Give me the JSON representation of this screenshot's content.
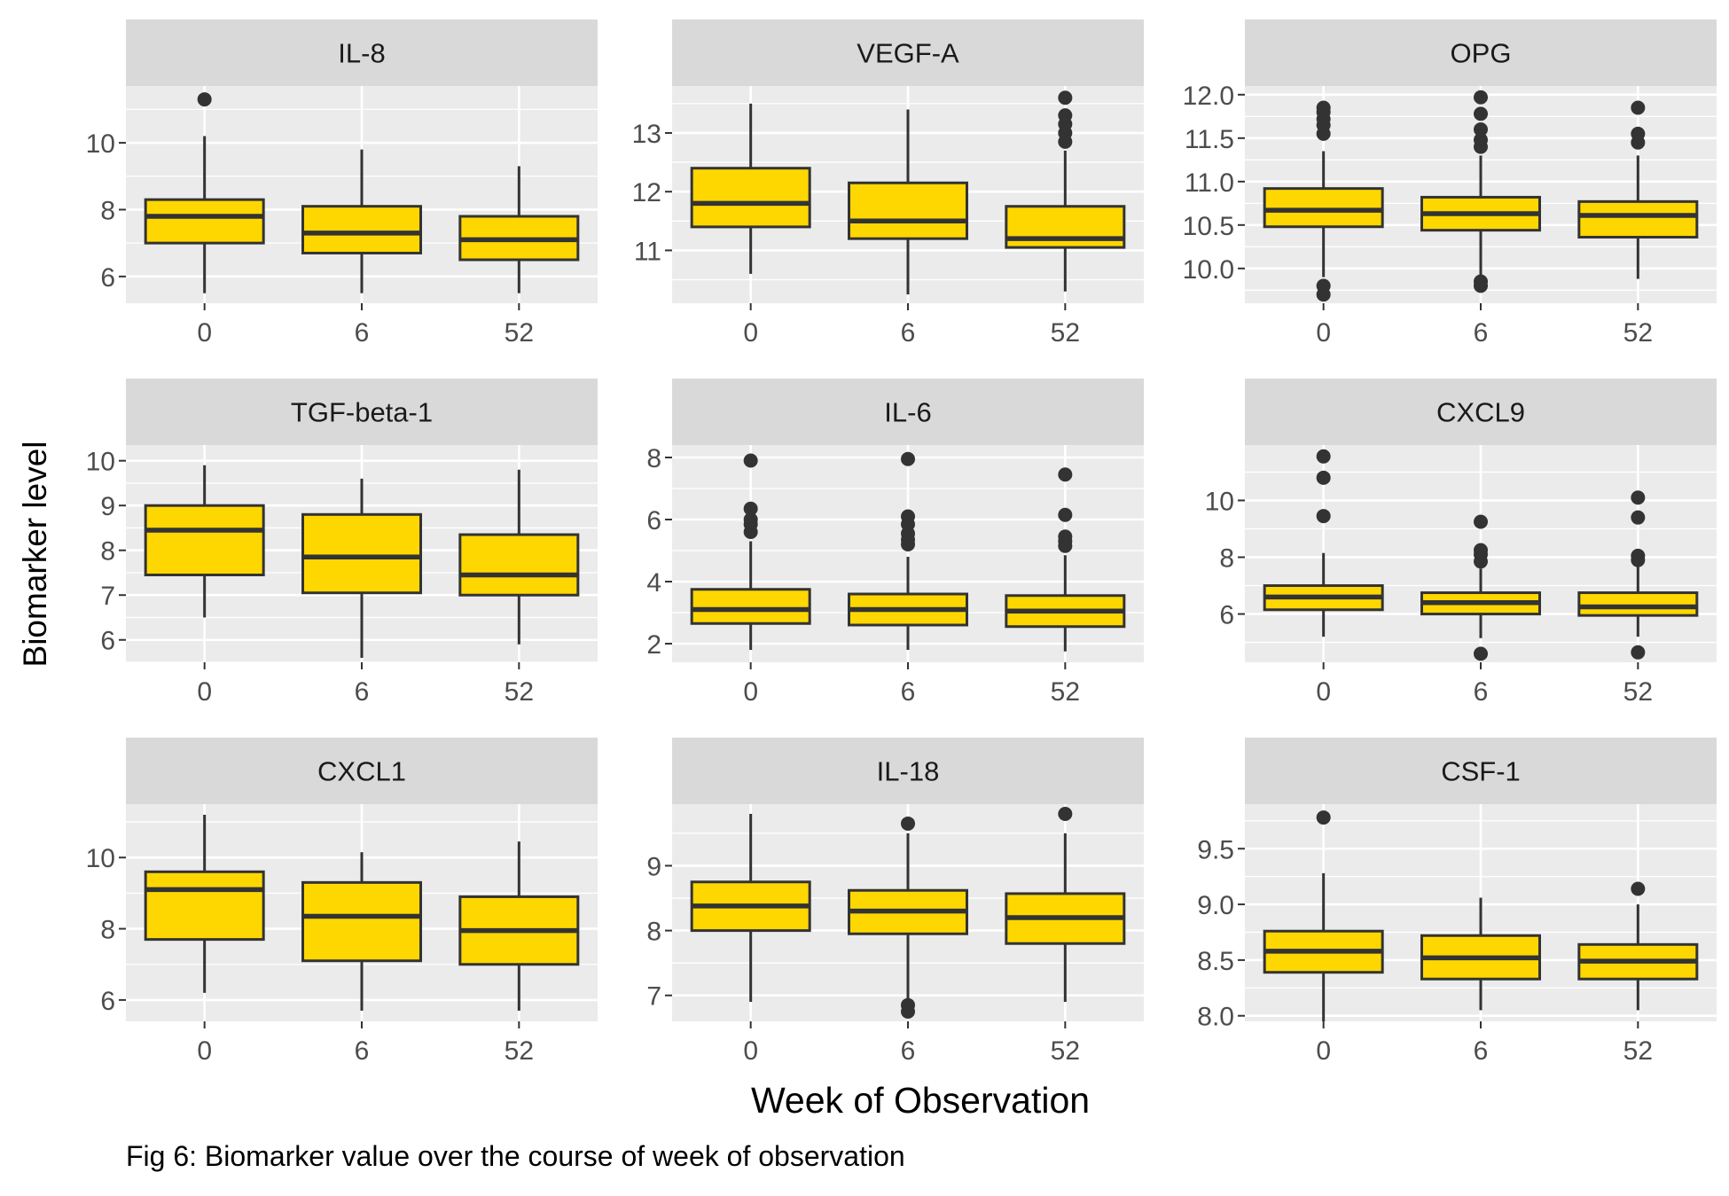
{
  "figure": {
    "y_axis_label": "Biomarker level",
    "x_axis_label": "Week of Observation",
    "caption": "Fig 6: Biomarker value over the course of week of observation"
  },
  "colors": {
    "panel_background": "#EBEBEB",
    "strip_background": "#D9D9D9",
    "gridline": "#FFFFFF",
    "box_fill": "#FFD700",
    "box_line": "#333333",
    "outlier": "#333333",
    "tick_text": "#4D4D4D"
  },
  "chart_data": [
    {
      "type": "boxplot",
      "title": "IL-8",
      "categories": [
        "0",
        "6",
        "52"
      ],
      "ylim": [
        5.2,
        11.7
      ],
      "y_ticks": [
        6,
        8,
        10
      ],
      "y_tick_labels": [
        "6",
        "8",
        "10"
      ],
      "boxes": [
        {
          "lower_whisker": 5.5,
          "q1": 7.0,
          "median": 7.8,
          "q3": 8.3,
          "upper_whisker": 10.2,
          "outliers": [
            11.3
          ]
        },
        {
          "lower_whisker": 5.5,
          "q1": 6.7,
          "median": 7.3,
          "q3": 8.1,
          "upper_whisker": 9.8,
          "outliers": []
        },
        {
          "lower_whisker": 5.5,
          "q1": 6.5,
          "median": 7.1,
          "q3": 7.8,
          "upper_whisker": 9.3,
          "outliers": []
        }
      ]
    },
    {
      "type": "boxplot",
      "title": "VEGF-A",
      "categories": [
        "0",
        "6",
        "52"
      ],
      "ylim": [
        10.1,
        13.8
      ],
      "y_ticks": [
        11,
        12,
        13
      ],
      "y_tick_labels": [
        "11",
        "12",
        "13"
      ],
      "boxes": [
        {
          "lower_whisker": 10.6,
          "q1": 11.4,
          "median": 11.8,
          "q3": 12.4,
          "upper_whisker": 13.5,
          "outliers": []
        },
        {
          "lower_whisker": 10.25,
          "q1": 11.2,
          "median": 11.5,
          "q3": 12.15,
          "upper_whisker": 13.4,
          "outliers": []
        },
        {
          "lower_whisker": 10.3,
          "q1": 11.05,
          "median": 11.2,
          "q3": 11.75,
          "upper_whisker": 12.7,
          "outliers": [
            12.85,
            13.0,
            13.15,
            13.3,
            13.6
          ]
        }
      ]
    },
    {
      "type": "boxplot",
      "title": "OPG",
      "categories": [
        "0",
        "6",
        "52"
      ],
      "ylim": [
        9.6,
        12.1
      ],
      "y_ticks": [
        10.0,
        10.5,
        11.0,
        11.5,
        12.0
      ],
      "y_tick_labels": [
        "10.0",
        "10.5",
        "11.0",
        "11.5",
        "12.0"
      ],
      "boxes": [
        {
          "lower_whisker": 9.9,
          "q1": 10.48,
          "median": 10.67,
          "q3": 10.92,
          "upper_whisker": 11.35,
          "outliers": [
            9.7,
            9.8,
            11.55,
            11.65,
            11.72,
            11.8,
            11.85
          ]
        },
        {
          "lower_whisker": 9.9,
          "q1": 10.44,
          "median": 10.63,
          "q3": 10.82,
          "upper_whisker": 11.3,
          "outliers": [
            9.8,
            9.85,
            11.4,
            11.48,
            11.6,
            11.78,
            11.97
          ]
        },
        {
          "lower_whisker": 9.88,
          "q1": 10.36,
          "median": 10.61,
          "q3": 10.77,
          "upper_whisker": 11.3,
          "outliers": [
            11.45,
            11.55,
            11.85
          ]
        }
      ]
    },
    {
      "type": "boxplot",
      "title": "TGF-beta-1",
      "categories": [
        "0",
        "6",
        "52"
      ],
      "ylim": [
        5.5,
        10.35
      ],
      "y_ticks": [
        6,
        7,
        8,
        9,
        10
      ],
      "y_tick_labels": [
        "6",
        "7",
        "8",
        "9",
        "10"
      ],
      "boxes": [
        {
          "lower_whisker": 6.5,
          "q1": 7.45,
          "median": 8.45,
          "q3": 9.0,
          "upper_whisker": 9.9,
          "outliers": []
        },
        {
          "lower_whisker": 5.6,
          "q1": 7.05,
          "median": 7.85,
          "q3": 8.8,
          "upper_whisker": 9.6,
          "outliers": []
        },
        {
          "lower_whisker": 5.9,
          "q1": 7.0,
          "median": 7.45,
          "q3": 8.35,
          "upper_whisker": 9.8,
          "outliers": []
        }
      ]
    },
    {
      "type": "boxplot",
      "title": "IL-6",
      "categories": [
        "0",
        "6",
        "52"
      ],
      "ylim": [
        1.4,
        8.4
      ],
      "y_ticks": [
        2,
        4,
        6,
        8
      ],
      "y_tick_labels": [
        "2",
        "4",
        "6",
        "8"
      ],
      "boxes": [
        {
          "lower_whisker": 1.8,
          "q1": 2.65,
          "median": 3.1,
          "q3": 3.75,
          "upper_whisker": 5.3,
          "outliers": [
            5.6,
            5.85,
            6.0,
            6.35,
            7.9
          ]
        },
        {
          "lower_whisker": 1.8,
          "q1": 2.6,
          "median": 3.1,
          "q3": 3.6,
          "upper_whisker": 4.8,
          "outliers": [
            5.2,
            5.35,
            5.55,
            5.85,
            6.1,
            7.95
          ]
        },
        {
          "lower_whisker": 1.75,
          "q1": 2.55,
          "median": 3.05,
          "q3": 3.55,
          "upper_whisker": 4.85,
          "outliers": [
            5.15,
            5.3,
            5.45,
            6.15,
            7.45
          ]
        }
      ]
    },
    {
      "type": "boxplot",
      "title": "CXCL9",
      "categories": [
        "0",
        "6",
        "52"
      ],
      "ylim": [
        4.3,
        11.95
      ],
      "y_ticks": [
        6,
        8,
        10
      ],
      "y_tick_labels": [
        "6",
        "8",
        "10"
      ],
      "boxes": [
        {
          "lower_whisker": 5.2,
          "q1": 6.15,
          "median": 6.6,
          "q3": 7.0,
          "upper_whisker": 8.15,
          "outliers": [
            9.45,
            10.8,
            11.55
          ]
        },
        {
          "lower_whisker": 5.15,
          "q1": 6.0,
          "median": 6.4,
          "q3": 6.75,
          "upper_whisker": 7.6,
          "outliers": [
            4.6,
            7.85,
            8.1,
            8.25,
            9.25
          ]
        },
        {
          "lower_whisker": 5.2,
          "q1": 5.95,
          "median": 6.25,
          "q3": 6.75,
          "upper_whisker": 7.7,
          "outliers": [
            4.65,
            7.9,
            8.05,
            9.4,
            10.1
          ]
        }
      ]
    },
    {
      "type": "boxplot",
      "title": "CXCL1",
      "categories": [
        "0",
        "6",
        "52"
      ],
      "ylim": [
        5.4,
        11.5
      ],
      "y_ticks": [
        6,
        8,
        10
      ],
      "y_tick_labels": [
        "6",
        "8",
        "10"
      ],
      "boxes": [
        {
          "lower_whisker": 6.2,
          "q1": 7.7,
          "median": 9.1,
          "q3": 9.6,
          "upper_whisker": 11.2,
          "outliers": []
        },
        {
          "lower_whisker": 5.7,
          "q1": 7.1,
          "median": 8.35,
          "q3": 9.3,
          "upper_whisker": 10.15,
          "outliers": []
        },
        {
          "lower_whisker": 5.7,
          "q1": 7.0,
          "median": 7.95,
          "q3": 8.9,
          "upper_whisker": 10.45,
          "outliers": []
        }
      ]
    },
    {
      "type": "boxplot",
      "title": "IL-18",
      "categories": [
        "0",
        "6",
        "52"
      ],
      "ylim": [
        6.6,
        9.95
      ],
      "y_ticks": [
        7,
        8,
        9
      ],
      "y_tick_labels": [
        "7",
        "8",
        "9"
      ],
      "boxes": [
        {
          "lower_whisker": 6.9,
          "q1": 8.0,
          "median": 8.38,
          "q3": 8.75,
          "upper_whisker": 9.8,
          "outliers": []
        },
        {
          "lower_whisker": 6.95,
          "q1": 7.95,
          "median": 8.3,
          "q3": 8.62,
          "upper_whisker": 9.5,
          "outliers": [
            6.75,
            6.85,
            9.65
          ]
        },
        {
          "lower_whisker": 6.9,
          "q1": 7.8,
          "median": 8.2,
          "q3": 8.57,
          "upper_whisker": 9.5,
          "outliers": [
            9.8
          ]
        }
      ]
    },
    {
      "type": "boxplot",
      "title": "CSF-1",
      "categories": [
        "0",
        "6",
        "52"
      ],
      "ylim": [
        7.95,
        9.9
      ],
      "y_ticks": [
        8.0,
        8.5,
        9.0,
        9.5
      ],
      "y_tick_labels": [
        "8.0",
        "8.5",
        "9.0",
        "9.5"
      ],
      "boxes": [
        {
          "lower_whisker": 7.95,
          "q1": 8.39,
          "median": 8.58,
          "q3": 8.76,
          "upper_whisker": 9.28,
          "outliers": [
            9.78
          ]
        },
        {
          "lower_whisker": 8.05,
          "q1": 8.33,
          "median": 8.52,
          "q3": 8.72,
          "upper_whisker": 9.06,
          "outliers": []
        },
        {
          "lower_whisker": 8.05,
          "q1": 8.33,
          "median": 8.49,
          "q3": 8.64,
          "upper_whisker": 9.0,
          "outliers": [
            9.14
          ]
        }
      ]
    }
  ]
}
